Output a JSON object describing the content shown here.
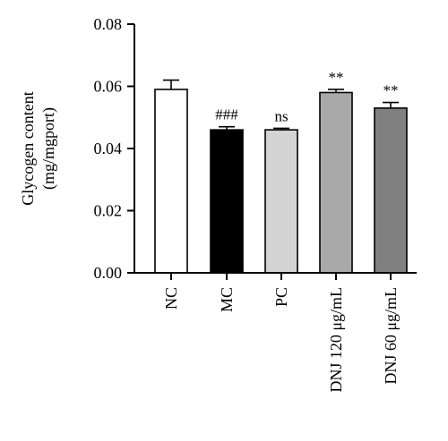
{
  "chart_data": {
    "type": "bar",
    "title": "",
    "xlabel": "",
    "ylabel_lines": [
      "Glycogen content",
      "(mg/mgport)"
    ],
    "ylim": [
      0,
      0.08
    ],
    "yticks": [
      "0.00",
      "0.02",
      "0.04",
      "0.06",
      "0.08"
    ],
    "categories": [
      "NC",
      "MC",
      "PC",
      "DNJ 120 μg/mL",
      "DNJ 60 μg/mL"
    ],
    "values": [
      0.059,
      0.046,
      0.046,
      0.058,
      0.053
    ],
    "errors": [
      0.003,
      0.001,
      0.0005,
      0.001,
      0.0018
    ],
    "annotations": [
      "",
      "###",
      "ns",
      "**",
      "**"
    ],
    "bar_colors": [
      "#ffffff",
      "#000000",
      "#d3d3d3",
      "#a9a9a9",
      "#808080"
    ],
    "grid": false,
    "legend": "none"
  }
}
